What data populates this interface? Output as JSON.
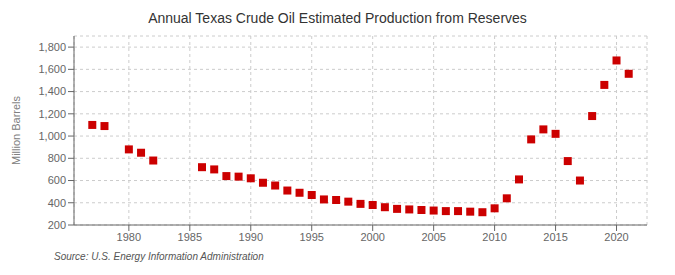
{
  "chart_data": {
    "type": "scatter",
    "title": "Annual Texas Crude Oil Estimated Production from Reserves",
    "ylabel": "Million Barrels",
    "annotation": "Source: U.S. Energy Information Administration",
    "x": [
      1977,
      1978,
      1980,
      1981,
      1982,
      1986,
      1987,
      1988,
      1989,
      1990,
      1991,
      1992,
      1993,
      1994,
      1995,
      1996,
      1997,
      1998,
      1999,
      2000,
      2001,
      2002,
      2003,
      2004,
      2005,
      2006,
      2007,
      2008,
      2009,
      2010,
      2011,
      2012,
      2013,
      2014,
      2015,
      2016,
      2017,
      2018,
      2019,
      2020,
      2021
    ],
    "values": [
      1100,
      1090,
      880,
      850,
      780,
      720,
      700,
      640,
      635,
      620,
      580,
      555,
      510,
      490,
      470,
      430,
      425,
      410,
      390,
      380,
      360,
      345,
      340,
      335,
      330,
      325,
      325,
      320,
      315,
      350,
      440,
      610,
      970,
      1060,
      1020,
      775,
      600,
      1180,
      1460,
      1680,
      1560
    ],
    "color": "#cc0000",
    "marker": "square",
    "grid": true,
    "xlim": [
      1975.5,
      2022.5
    ],
    "ylim": [
      200,
      1900
    ],
    "xticks": [
      1980,
      1985,
      1990,
      1995,
      2000,
      2005,
      2010,
      2015,
      2020
    ],
    "yticks": [
      200,
      400,
      600,
      800,
      {
        "value": 1000,
        "label": "1,000"
      },
      {
        "value": 1200,
        "label": "1,200"
      },
      {
        "value": 1400,
        "label": "1,400"
      },
      {
        "value": 1600,
        "label": "1,600"
      },
      {
        "value": 1800,
        "label": "1,800"
      }
    ]
  }
}
